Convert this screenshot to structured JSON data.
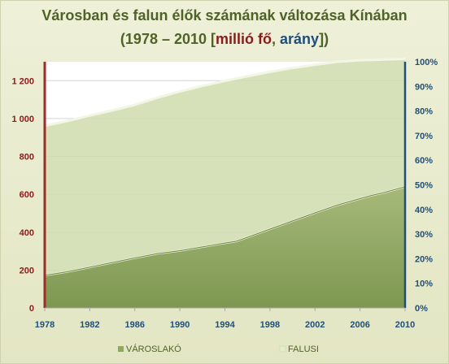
{
  "chart_data": {
    "type": "area",
    "title_line1": "Városban és falun élők számának változása Kínában",
    "title_line2_prefix": "(1978 – 2010 [",
    "title_line2_unit": "millió fő",
    "title_line2_sep": ", ",
    "title_line2_ratio": "arány",
    "title_line2_suffix": "])",
    "x": [
      1978,
      1980,
      1982,
      1984,
      1986,
      1988,
      1990,
      1992,
      1994,
      1995,
      1996,
      1998,
      2000,
      2002,
      2004,
      2006,
      2007,
      2008,
      2010
    ],
    "x_ticks": [
      "1978",
      "1982",
      "1986",
      "1990",
      "1994",
      "1998",
      "2002",
      "2006",
      "2010"
    ],
    "y_left_ticks": [
      "0",
      "200",
      "400",
      "600",
      "800",
      "1 000",
      "1 200"
    ],
    "y_right_ticks": [
      "0%",
      "10%",
      "20%",
      "30%",
      "40%",
      "50%",
      "60%",
      "70%",
      "80%",
      "90%",
      "100%"
    ],
    "ylim_left": [
      0,
      1300
    ],
    "ylim_right": [
      0,
      100
    ],
    "series": [
      {
        "name": "VÁROSLAKÓ",
        "color": "#8ea860",
        "values": [
          172,
          191,
          215,
          240,
          264,
          287,
          302,
          322,
          343,
          352,
          373,
          416,
          459,
          502,
          543,
          577,
          594,
          607,
          640
        ]
      },
      {
        "name": "FALUSI",
        "color": "#cfdcae",
        "values": [
          790,
          796,
          801,
          803,
          808,
          823,
          841,
          850,
          856,
          859,
          850,
          831,
          808,
          782,
          757,
          731,
          715,
          704,
          675
        ]
      }
    ],
    "grid": true,
    "legend_position": "bottom"
  }
}
